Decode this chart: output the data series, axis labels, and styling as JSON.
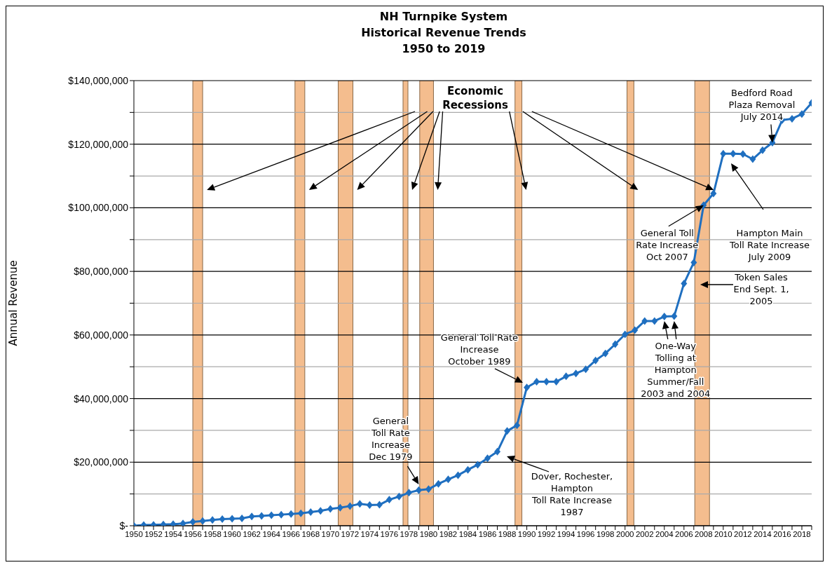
{
  "chart_data": {
    "type": "line",
    "title": "NH Turnpike System\nHistorical Revenue Trends\n1950 to 2019",
    "ylabel": "Annual Revenue",
    "x": [
      1950,
      1951,
      1952,
      1953,
      1954,
      1955,
      1956,
      1957,
      1958,
      1959,
      1960,
      1961,
      1962,
      1963,
      1964,
      1965,
      1966,
      1967,
      1968,
      1969,
      1970,
      1971,
      1972,
      1973,
      1974,
      1975,
      1976,
      1977,
      1978,
      1979,
      1980,
      1981,
      1982,
      1983,
      1984,
      1985,
      1986,
      1987,
      1988,
      1989,
      1990,
      1991,
      1992,
      1993,
      1994,
      1995,
      1996,
      1997,
      1998,
      1999,
      2000,
      2001,
      2002,
      2003,
      2004,
      2005,
      2006,
      2007,
      2008,
      2009,
      2010,
      2011,
      2012,
      2013,
      2014,
      2015,
      2016,
      2017,
      2018,
      2019
    ],
    "series": [
      {
        "color": "#1f6fc0",
        "values": [
          0,
          200000,
          300000,
          400000,
          500000,
          700000,
          1200000,
          1500000,
          1800000,
          2100000,
          2200000,
          2300000,
          2900000,
          3100000,
          3300000,
          3500000,
          3700000,
          3900000,
          4300000,
          4700000,
          5300000,
          5700000,
          6200000,
          6900000,
          6500000,
          6600000,
          8200000,
          9200000,
          10400000,
          11200000,
          11500000,
          13200000,
          14600000,
          15900000,
          17600000,
          19200000,
          21200000,
          23300000,
          29800000,
          31600000,
          43500000,
          45300000,
          45300000,
          45300000,
          47000000,
          47900000,
          49200000,
          52000000,
          54200000,
          57100000,
          60200000,
          61500000,
          64400000,
          64400000,
          65800000,
          65900000,
          76200000,
          82800000,
          100800000,
          104500000,
          117000000,
          117000000,
          116900000,
          115300000,
          118100000,
          120500000,
          127600000,
          128000000,
          129500000,
          133000000
        ]
      }
    ],
    "xlim": [
      1950,
      2019
    ],
    "xticks": [
      1950,
      {
        "value": 1951,
        "label": null
      },
      1952,
      {
        "value": 1953,
        "label": null
      },
      1954,
      {
        "value": 1955,
        "label": null
      },
      1956,
      {
        "value": 1957,
        "label": null
      },
      1958,
      {
        "value": 1959,
        "label": null
      },
      1960,
      {
        "value": 1961,
        "label": null
      },
      1962,
      {
        "value": 1963,
        "label": null
      },
      1964,
      {
        "value": 1965,
        "label": null
      },
      1966,
      {
        "value": 1967,
        "label": null
      },
      1968,
      {
        "value": 1969,
        "label": null
      },
      1970,
      {
        "value": 1971,
        "label": null
      },
      1972,
      {
        "value": 1973,
        "label": null
      },
      1974,
      {
        "value": 1975,
        "label": null
      },
      1976,
      {
        "value": 1977,
        "label": null
      },
      1978,
      {
        "value": 1979,
        "label": null
      },
      1980,
      {
        "value": 1981,
        "label": null
      },
      1982,
      {
        "value": 1983,
        "label": null
      },
      1984,
      {
        "value": 1985,
        "label": null
      },
      1986,
      {
        "value": 1987,
        "label": null
      },
      1988,
      {
        "value": 1989,
        "label": null
      },
      1990,
      {
        "value": 1991,
        "label": null
      },
      1992,
      {
        "value": 1993,
        "label": null
      },
      1994,
      {
        "value": 1995,
        "label": null
      },
      1996,
      {
        "value": 1997,
        "label": null
      },
      1998,
      {
        "value": 1999,
        "label": null
      },
      2000,
      {
        "value": 2001,
        "label": null
      },
      2002,
      {
        "value": 2003,
        "label": null
      },
      2004,
      {
        "value": 2005,
        "label": null
      },
      2006,
      {
        "value": 2007,
        "label": null
      },
      2008,
      {
        "value": 2009,
        "label": null
      },
      2010,
      {
        "value": 2011,
        "label": null
      },
      2012,
      {
        "value": 2013,
        "label": null
      },
      2014,
      {
        "value": 2015,
        "label": null
      },
      2016,
      {
        "value": 2017,
        "label": null
      },
      2018,
      {
        "value": 2019,
        "label": null
      }
    ],
    "ylim": [
      0,
      140000000
    ],
    "yticks": [
      {
        "value": 0,
        "label": "$-"
      },
      {
        "value": 10000000,
        "label": null
      },
      {
        "value": 20000000,
        "label": "$20,000,000"
      },
      {
        "value": 30000000,
        "label": null
      },
      {
        "value": 40000000,
        "label": "$40,000,000"
      },
      {
        "value": 50000000,
        "label": null
      },
      {
        "value": 60000000,
        "label": "$60,000,000"
      },
      {
        "value": 70000000,
        "label": null
      },
      {
        "value": 80000000,
        "label": "$80,000,000"
      },
      {
        "value": 90000000,
        "label": null
      },
      {
        "value": 100000000,
        "label": "$100,000,000"
      },
      {
        "value": 110000000,
        "label": null
      },
      {
        "value": 120000000,
        "label": "$120,000,000"
      },
      {
        "value": 130000000,
        "label": null
      },
      {
        "value": 140000000,
        "label": "$140,000,000"
      }
    ],
    "grid": "y",
    "marker": "diamond",
    "line_style": "solid",
    "bands": [
      {
        "axis": "x",
        "from": 1956.0,
        "to": 1957.0,
        "color": "#f2b27a"
      },
      {
        "axis": "x",
        "from": 1966.4,
        "to": 1967.4,
        "color": "#f2b27a"
      },
      {
        "axis": "x",
        "from": 1970.8,
        "to": 1972.3,
        "color": "#f2b27a"
      },
      {
        "axis": "x",
        "from": 1977.4,
        "to": 1977.9,
        "color": "#f2b27a"
      },
      {
        "axis": "x",
        "from": 1979.1,
        "to": 1980.5,
        "color": "#f2b27a"
      },
      {
        "axis": "x",
        "from": 1988.8,
        "to": 1989.5,
        "color": "#f2b27a"
      },
      {
        "axis": "x",
        "from": 2000.2,
        "to": 2000.9,
        "color": "#f2b27a"
      },
      {
        "axis": "x",
        "from": 2007.1,
        "to": 2008.6,
        "color": "#f2b27a"
      }
    ],
    "annotations": [
      {
        "text": "General\nToll Rate\nIncrease\nDec 1979",
        "x": 1979,
        "y": 13000000
      },
      "Dover, Rochester,\nHampton\nToll Rate Increase\n1987",
      {
        "text": "General Toll Rate\nIncrease\nOctober 1989",
        "x": 1989.6,
        "y": 45000000
      },
      {
        "text": "One-Way\nTolling at\nHampton\nSummer/Fall\n2003 and 2004",
        "x": 2004,
        "y": 64400000
      },
      {
        "text": "General Toll\nRate Increase\nOct 2007",
        "x": 2008,
        "y": 100800000
      },
      "Token Sales\nEnd Sept. 1,\n2005",
      "Hampton Main\nToll Rate Increase\nJuly 2009",
      {
        "text": "Bedford Road\nPlaza Removal\nJuly 2014",
        "x": 2015,
        "y": 120500000
      },
      "Economic\nRecessions"
    ]
  }
}
